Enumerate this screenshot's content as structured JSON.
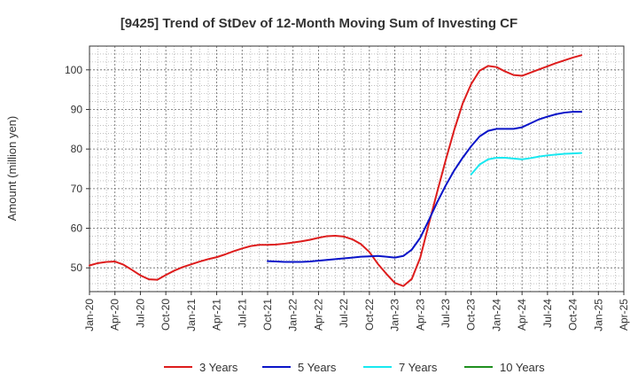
{
  "chart_data": {
    "type": "line",
    "title": "[9425]  Trend of StDev of 12-Month Moving Sum of Investing CF",
    "ylabel": "Amount (million yen)",
    "xlabel": "",
    "ylim": [
      44,
      106
    ],
    "yticks": [
      50,
      60,
      70,
      80,
      90,
      100
    ],
    "x_ticks": [
      "Jan-20",
      "Apr-20",
      "Jul-20",
      "Oct-20",
      "Jan-21",
      "Apr-21",
      "Jul-21",
      "Oct-21",
      "Jan-22",
      "Apr-22",
      "Jul-22",
      "Oct-22",
      "Jan-23",
      "Apr-23",
      "Jul-23",
      "Oct-23",
      "Jan-24",
      "Apr-24",
      "Jul-24",
      "Oct-24",
      "Jan-25",
      "Apr-25"
    ],
    "x_range": [
      "2020-01",
      "2025-04"
    ],
    "grid": true,
    "legend_position": "bottom",
    "series": [
      {
        "name": "3 Years",
        "color": "#dd1c1c",
        "points": [
          [
            "2020-01",
            50.6
          ],
          [
            "2020-02",
            51.2
          ],
          [
            "2020-03",
            51.5
          ],
          [
            "2020-04",
            51.6
          ],
          [
            "2020-05",
            50.8
          ],
          [
            "2020-06",
            49.5
          ],
          [
            "2020-07",
            48.1
          ],
          [
            "2020-08",
            47.1
          ],
          [
            "2020-09",
            47.0
          ],
          [
            "2020-10",
            48.2
          ],
          [
            "2020-11",
            49.3
          ],
          [
            "2020-12",
            50.2
          ],
          [
            "2021-01",
            50.9
          ],
          [
            "2021-02",
            51.6
          ],
          [
            "2021-03",
            52.2
          ],
          [
            "2021-04",
            52.7
          ],
          [
            "2021-05",
            53.4
          ],
          [
            "2021-06",
            54.2
          ],
          [
            "2021-07",
            54.9
          ],
          [
            "2021-08",
            55.5
          ],
          [
            "2021-09",
            55.8
          ],
          [
            "2021-10",
            55.8
          ],
          [
            "2021-11",
            55.9
          ],
          [
            "2021-12",
            56.1
          ],
          [
            "2022-01",
            56.4
          ],
          [
            "2022-02",
            56.7
          ],
          [
            "2022-03",
            57.1
          ],
          [
            "2022-04",
            57.6
          ],
          [
            "2022-05",
            58.0
          ],
          [
            "2022-06",
            58.1
          ],
          [
            "2022-07",
            57.9
          ],
          [
            "2022-08",
            57.2
          ],
          [
            "2022-09",
            56.0
          ],
          [
            "2022-10",
            54.0
          ],
          [
            "2022-11",
            51.0
          ],
          [
            "2022-12",
            48.5
          ],
          [
            "2023-01",
            46.2
          ],
          [
            "2023-02",
            45.4
          ],
          [
            "2023-03",
            47.2
          ],
          [
            "2023-04",
            52.6
          ],
          [
            "2023-05",
            61.0
          ],
          [
            "2023-06",
            69.2
          ],
          [
            "2023-07",
            77.2
          ],
          [
            "2023-08",
            84.8
          ],
          [
            "2023-09",
            91.5
          ],
          [
            "2023-10",
            96.4
          ],
          [
            "2023-11",
            99.8
          ],
          [
            "2023-12",
            101.0
          ],
          [
            "2024-01",
            100.7
          ],
          [
            "2024-02",
            99.6
          ],
          [
            "2024-03",
            98.7
          ],
          [
            "2024-04",
            98.5
          ],
          [
            "2024-05",
            99.3
          ],
          [
            "2024-06",
            100.1
          ],
          [
            "2024-07",
            100.9
          ],
          [
            "2024-08",
            101.7
          ],
          [
            "2024-09",
            102.4
          ],
          [
            "2024-10",
            103.1
          ],
          [
            "2024-11",
            103.7
          ]
        ]
      },
      {
        "name": "5 Years",
        "color": "#0a14c8",
        "points": [
          [
            "2021-10",
            51.7
          ],
          [
            "2021-11",
            51.6
          ],
          [
            "2021-12",
            51.5
          ],
          [
            "2022-01",
            51.5
          ],
          [
            "2022-02",
            51.5
          ],
          [
            "2022-03",
            51.6
          ],
          [
            "2022-04",
            51.8
          ],
          [
            "2022-05",
            52.0
          ],
          [
            "2022-06",
            52.2
          ],
          [
            "2022-07",
            52.4
          ],
          [
            "2022-08",
            52.6
          ],
          [
            "2022-09",
            52.8
          ],
          [
            "2022-10",
            52.9
          ],
          [
            "2022-11",
            53.0
          ],
          [
            "2022-12",
            52.8
          ],
          [
            "2023-01",
            52.6
          ],
          [
            "2023-02",
            53.0
          ],
          [
            "2023-03",
            54.6
          ],
          [
            "2023-04",
            57.6
          ],
          [
            "2023-05",
            62.0
          ],
          [
            "2023-06",
            66.6
          ],
          [
            "2023-07",
            70.8
          ],
          [
            "2023-08",
            74.6
          ],
          [
            "2023-09",
            77.8
          ],
          [
            "2023-10",
            80.7
          ],
          [
            "2023-11",
            83.2
          ],
          [
            "2023-12",
            84.6
          ],
          [
            "2024-01",
            85.1
          ],
          [
            "2024-02",
            85.1
          ],
          [
            "2024-03",
            85.1
          ],
          [
            "2024-04",
            85.5
          ],
          [
            "2024-05",
            86.5
          ],
          [
            "2024-06",
            87.5
          ],
          [
            "2024-07",
            88.2
          ],
          [
            "2024-08",
            88.8
          ],
          [
            "2024-09",
            89.2
          ],
          [
            "2024-10",
            89.4
          ],
          [
            "2024-11",
            89.4
          ]
        ]
      },
      {
        "name": "7 Years",
        "color": "#18e8f0",
        "points": [
          [
            "2023-10",
            73.6
          ],
          [
            "2023-11",
            76.1
          ],
          [
            "2023-12",
            77.4
          ],
          [
            "2024-01",
            77.8
          ],
          [
            "2024-02",
            77.8
          ],
          [
            "2024-03",
            77.6
          ],
          [
            "2024-04",
            77.4
          ],
          [
            "2024-05",
            77.7
          ],
          [
            "2024-06",
            78.1
          ],
          [
            "2024-07",
            78.4
          ],
          [
            "2024-08",
            78.6
          ],
          [
            "2024-09",
            78.8
          ],
          [
            "2024-10",
            78.9
          ],
          [
            "2024-11",
            79.0
          ]
        ]
      },
      {
        "name": "10 Years",
        "color": "#1f8f1f",
        "points": []
      }
    ]
  }
}
